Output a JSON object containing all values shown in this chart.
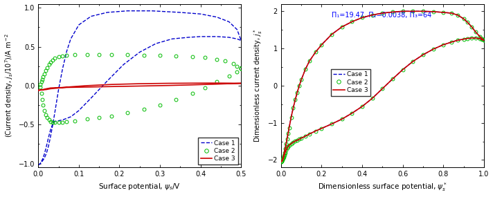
{
  "left": {
    "xlabel": "Surface potential, $\\psi_s$/V",
    "ylabel": "(Current density, $j_s$/10$^7$)/A m$^{-2}$",
    "xlim": [
      0.0,
      0.5
    ],
    "ylim": [
      -1.05,
      1.05
    ],
    "xticks": [
      0.0,
      0.1,
      0.2,
      0.3,
      0.4,
      0.5
    ],
    "yticks": [
      -1.0,
      -0.5,
      0.0,
      0.5,
      1.0
    ],
    "case1_color": "#0000cc",
    "case2_color": "#00bb00",
    "case3_color": "#cc0000",
    "case1_x": [
      0.0,
      0.005,
      0.01,
      0.015,
      0.02,
      0.025,
      0.03,
      0.035,
      0.04,
      0.05,
      0.06,
      0.07,
      0.08,
      0.1,
      0.13,
      0.17,
      0.22,
      0.28,
      0.35,
      0.4,
      0.44,
      0.47,
      0.49,
      0.5,
      0.5,
      0.49,
      0.47,
      0.44,
      0.42,
      0.4,
      0.37,
      0.33,
      0.29,
      0.25,
      0.21,
      0.17,
      0.13,
      0.1,
      0.08,
      0.06,
      0.05,
      0.04,
      0.035,
      0.03,
      0.025,
      0.02,
      0.015,
      0.01,
      0.005,
      0.0
    ],
    "case1_y": [
      -1.02,
      -1.0,
      -0.97,
      -0.93,
      -0.87,
      -0.78,
      -0.66,
      -0.52,
      -0.37,
      -0.05,
      0.22,
      0.44,
      0.6,
      0.78,
      0.89,
      0.94,
      0.96,
      0.96,
      0.94,
      0.92,
      0.88,
      0.82,
      0.72,
      0.58,
      0.58,
      0.6,
      0.62,
      0.63,
      0.63,
      0.63,
      0.62,
      0.6,
      0.54,
      0.43,
      0.27,
      0.06,
      -0.16,
      -0.32,
      -0.4,
      -0.44,
      -0.45,
      -0.46,
      -0.5,
      -0.57,
      -0.67,
      -0.78,
      -0.88,
      -0.95,
      -1.0,
      -1.02
    ],
    "case2_fwd_x": [
      0.005,
      0.008,
      0.01,
      0.012,
      0.015,
      0.018,
      0.022,
      0.026,
      0.03,
      0.035,
      0.04,
      0.05,
      0.06,
      0.07,
      0.09,
      0.12,
      0.15,
      0.18,
      0.22,
      0.26,
      0.3,
      0.34,
      0.38,
      0.41,
      0.44,
      0.46,
      0.48,
      0.49,
      0.5
    ],
    "case2_fwd_y": [
      0.02,
      0.05,
      0.08,
      0.11,
      0.15,
      0.19,
      0.23,
      0.27,
      0.3,
      0.33,
      0.35,
      0.37,
      0.38,
      0.39,
      0.4,
      0.4,
      0.4,
      0.4,
      0.4,
      0.39,
      0.39,
      0.38,
      0.37,
      0.36,
      0.34,
      0.32,
      0.28,
      0.25,
      0.22
    ],
    "case2_bwd_x": [
      0.5,
      0.49,
      0.47,
      0.44,
      0.41,
      0.38,
      0.34,
      0.3,
      0.26,
      0.22,
      0.18,
      0.15,
      0.12,
      0.09,
      0.07,
      0.06,
      0.05,
      0.04,
      0.035,
      0.03,
      0.026,
      0.022,
      0.018,
      0.015,
      0.012,
      0.01,
      0.008,
      0.005
    ],
    "case2_bwd_y": [
      0.22,
      0.18,
      0.12,
      0.05,
      -0.03,
      -0.1,
      -0.18,
      -0.25,
      -0.3,
      -0.35,
      -0.39,
      -0.41,
      -0.43,
      -0.45,
      -0.46,
      -0.47,
      -0.47,
      -0.47,
      -0.47,
      -0.46,
      -0.44,
      -0.41,
      -0.37,
      -0.32,
      -0.25,
      -0.18,
      -0.1,
      -0.02
    ],
    "case3_x": [
      0.0,
      0.01,
      0.02,
      0.03,
      0.05,
      0.08,
      0.12,
      0.18,
      0.25,
      0.32,
      0.38,
      0.43,
      0.47,
      0.5,
      0.5,
      0.47,
      0.43,
      0.38,
      0.32,
      0.25,
      0.18,
      0.12,
      0.08,
      0.05,
      0.03,
      0.02,
      0.01,
      0.0
    ],
    "case3_y": [
      -0.06,
      -0.055,
      -0.05,
      -0.04,
      -0.03,
      -0.015,
      0.0,
      0.015,
      0.025,
      0.03,
      0.032,
      0.033,
      0.032,
      0.03,
      0.03,
      0.025,
      0.018,
      0.01,
      0.002,
      -0.005,
      -0.012,
      -0.018,
      -0.022,
      -0.025,
      -0.03,
      -0.04,
      -0.052,
      -0.06
    ]
  },
  "right": {
    "xlabel": "Dimensionless surface potential, $\\psi_s^*$",
    "ylabel": "Dimensionless current density, $j_s^*$",
    "xlim": [
      0.0,
      1.0
    ],
    "ylim": [
      -2.2,
      2.2
    ],
    "xticks": [
      0.0,
      0.2,
      0.4,
      0.6,
      0.8,
      1.0
    ],
    "yticks": [
      -2.0,
      -1.0,
      0.0,
      1.0,
      2.0
    ],
    "annot": "Π₁=19.47, Π₂=0.0038, Π₃=64",
    "case1_color": "#0000cc",
    "case2_color": "#00bb00",
    "case3_color": "#cc0000",
    "case13_x": [
      0.0,
      0.005,
      0.008,
      0.01,
      0.013,
      0.016,
      0.02,
      0.025,
      0.03,
      0.035,
      0.04,
      0.05,
      0.06,
      0.07,
      0.08,
      0.09,
      0.1,
      0.12,
      0.14,
      0.17,
      0.2,
      0.25,
      0.3,
      0.35,
      0.4,
      0.45,
      0.5,
      0.55,
      0.6,
      0.65,
      0.7,
      0.75,
      0.8,
      0.84,
      0.87,
      0.9,
      0.92,
      0.94,
      0.96,
      0.98,
      0.99,
      1.0,
      1.0,
      0.99,
      0.98,
      0.96,
      0.94,
      0.92,
      0.9,
      0.87,
      0.84,
      0.8,
      0.75,
      0.7,
      0.65,
      0.6,
      0.55,
      0.5,
      0.45,
      0.4,
      0.35,
      0.3,
      0.25,
      0.2,
      0.17,
      0.14,
      0.12,
      0.1,
      0.09,
      0.08,
      0.07,
      0.06,
      0.05,
      0.04,
      0.035,
      0.03,
      0.025,
      0.02,
      0.016,
      0.013,
      0.01,
      0.008,
      0.005,
      0.0
    ],
    "case13_y": [
      -2.05,
      -2.02,
      -1.98,
      -1.94,
      -1.88,
      -1.8,
      -1.7,
      -1.57,
      -1.43,
      -1.28,
      -1.13,
      -0.85,
      -0.6,
      -0.38,
      -0.18,
      0.0,
      0.16,
      0.44,
      0.66,
      0.9,
      1.1,
      1.38,
      1.58,
      1.72,
      1.83,
      1.9,
      1.95,
      1.98,
      2.0,
      2.0,
      2.0,
      1.99,
      1.97,
      1.95,
      1.9,
      1.8,
      1.7,
      1.58,
      1.44,
      1.32,
      1.27,
      1.22,
      1.22,
      1.24,
      1.26,
      1.28,
      1.28,
      1.27,
      1.25,
      1.22,
      1.17,
      1.1,
      0.98,
      0.83,
      0.65,
      0.43,
      0.18,
      -0.08,
      -0.34,
      -0.56,
      -0.74,
      -0.9,
      -1.03,
      -1.15,
      -1.22,
      -1.3,
      -1.36,
      -1.41,
      -1.44,
      -1.47,
      -1.49,
      -1.52,
      -1.56,
      -1.6,
      -1.64,
      -1.68,
      -1.74,
      -1.8,
      -1.86,
      -1.92,
      -1.96,
      -1.99,
      -2.02,
      -2.05
    ],
    "case2_fwd_x": [
      0.0,
      0.005,
      0.008,
      0.01,
      0.013,
      0.016,
      0.02,
      0.025,
      0.03,
      0.035,
      0.04,
      0.05,
      0.06,
      0.07,
      0.08,
      0.09,
      0.1,
      0.12,
      0.14,
      0.17,
      0.2,
      0.25,
      0.3,
      0.35,
      0.4,
      0.45,
      0.5,
      0.55,
      0.6,
      0.65,
      0.7,
      0.75,
      0.8,
      0.84,
      0.87,
      0.9,
      0.92,
      0.94,
      0.96,
      0.98,
      0.99,
      1.0
    ],
    "case2_fwd_y": [
      -2.05,
      -2.02,
      -1.98,
      -1.94,
      -1.88,
      -1.8,
      -1.7,
      -1.57,
      -1.43,
      -1.28,
      -1.13,
      -0.85,
      -0.6,
      -0.38,
      -0.18,
      0.0,
      0.16,
      0.44,
      0.66,
      0.9,
      1.1,
      1.38,
      1.58,
      1.72,
      1.83,
      1.9,
      1.95,
      1.98,
      2.0,
      2.0,
      2.0,
      1.99,
      1.97,
      1.95,
      1.9,
      1.8,
      1.7,
      1.58,
      1.44,
      1.32,
      1.27,
      1.22
    ],
    "case2_bwd_x": [
      1.0,
      0.99,
      0.98,
      0.96,
      0.94,
      0.92,
      0.9,
      0.87,
      0.84,
      0.8,
      0.75,
      0.7,
      0.65,
      0.6,
      0.55,
      0.5,
      0.45,
      0.4,
      0.35,
      0.3,
      0.25,
      0.2,
      0.17,
      0.14,
      0.12,
      0.1,
      0.09,
      0.08,
      0.07,
      0.06,
      0.05,
      0.04,
      0.035,
      0.03,
      0.025,
      0.02,
      0.016,
      0.013,
      0.01,
      0.008,
      0.005,
      0.0
    ],
    "case2_bwd_y": [
      1.22,
      1.24,
      1.26,
      1.28,
      1.28,
      1.27,
      1.25,
      1.22,
      1.17,
      1.1,
      0.98,
      0.83,
      0.65,
      0.43,
      0.18,
      -0.08,
      -0.34,
      -0.56,
      -0.74,
      -0.9,
      -1.03,
      -1.15,
      -1.22,
      -1.3,
      -1.36,
      -1.41,
      -1.44,
      -1.47,
      -1.49,
      -1.52,
      -1.56,
      -1.6,
      -1.64,
      -1.68,
      -1.74,
      -1.8,
      -1.86,
      -1.92,
      -1.96,
      -1.99,
      -2.02,
      -2.05
    ]
  }
}
